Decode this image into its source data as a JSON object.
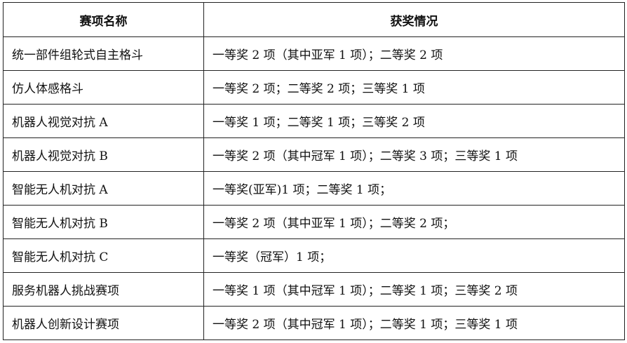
{
  "table": {
    "headers": [
      "赛项名称",
      "获奖情况"
    ],
    "rows": [
      [
        "统一部件组轮式自主格斗",
        "一等奖 2 项（其中亚军 1 项）；二等奖 2 项"
      ],
      [
        "仿人体感格斗",
        "一等奖 2 项；二等奖 2 项；三等奖 1 项"
      ],
      [
        "机器人视觉对抗 A",
        "一等奖 1 项；二等奖 1 项；三等奖 2 项"
      ],
      [
        "机器人视觉对抗 B",
        "一等奖 2 项（其中冠军 1 项）；二等奖 3 项；三等奖 1 项"
      ],
      [
        "智能无人机对抗 A",
        "一等奖(亚军)1 项；二等奖 1 项；"
      ],
      [
        "智能无人机对抗 B",
        "一等奖 2 项（其中亚军 1 项）；二等奖 2 项；"
      ],
      [
        "智能无人机对抗 C",
        "一等奖（冠军）1 项；"
      ],
      [
        "服务机器人挑战赛项",
        "一等奖 1 项（其中冠军 1 项）；二等奖 1 项；三等奖 2 项"
      ],
      [
        "机器人创新设计赛项",
        "一等奖 2 项（其中冠军 1 项）；二等奖 1 项；三等奖 1 项"
      ]
    ]
  }
}
